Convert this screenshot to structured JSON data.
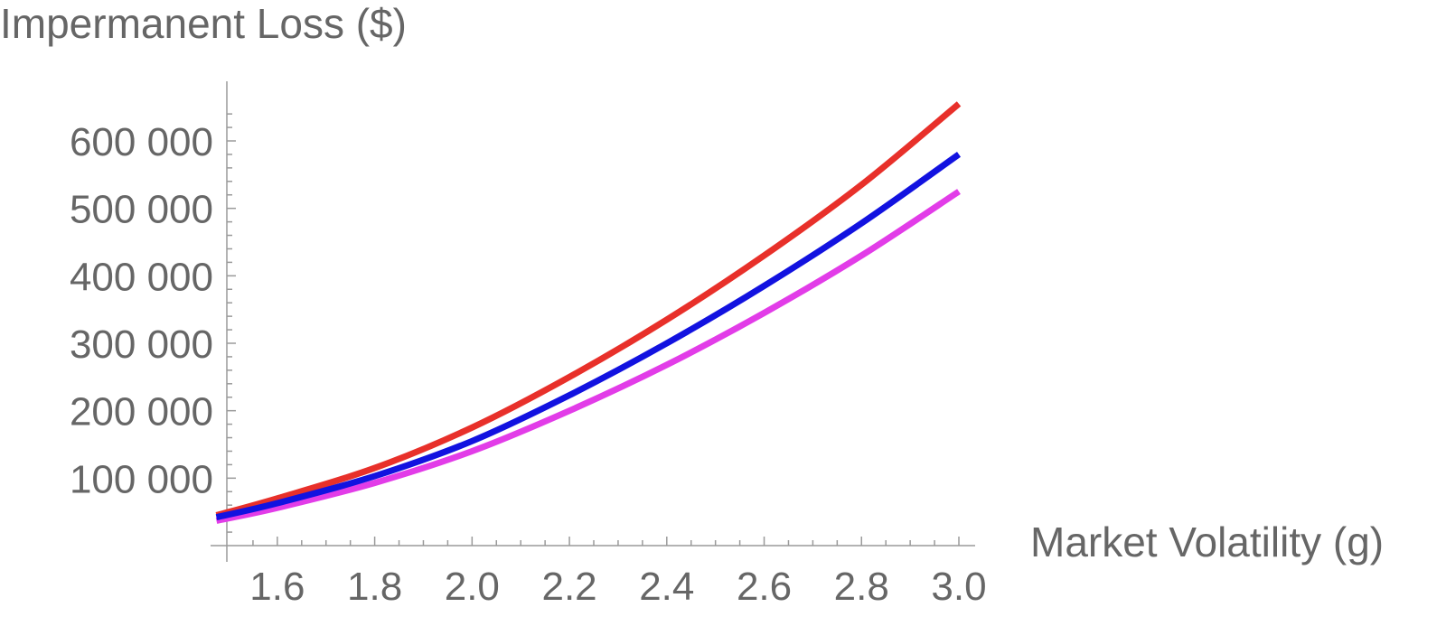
{
  "chart_data": {
    "type": "line",
    "title": "",
    "ylabel": "Impermanent Loss ($)",
    "xlabel": "Market Volatility (g)",
    "xlim": [
      1.5,
      3.0
    ],
    "ylim": [
      0,
      650000
    ],
    "x_ticks": [
      "1.6",
      "1.8",
      "2.0",
      "2.2",
      "2.4",
      "2.6",
      "2.8",
      "3.0"
    ],
    "y_ticks": [
      "100 000",
      "200 000",
      "300 000",
      "400 000",
      "500 000",
      "600 000"
    ],
    "grid": false,
    "series": [
      {
        "color": "#e8302a",
        "x": [
          1.475,
          1.6,
          1.8,
          2.0,
          2.2,
          2.4,
          2.6,
          2.8,
          3.0
        ],
        "y": [
          45000,
          70000,
          115000,
          175000,
          250000,
          335000,
          430000,
          535000,
          655000
        ]
      },
      {
        "color": "#1212e0",
        "x": [
          1.475,
          1.6,
          1.8,
          2.0,
          2.2,
          2.4,
          2.6,
          2.8,
          3.0
        ],
        "y": [
          42000,
          63000,
          103000,
          155000,
          223000,
          300000,
          385000,
          478000,
          580000
        ]
      },
      {
        "color": "#e23ce8",
        "x": [
          1.475,
          1.6,
          1.8,
          2.0,
          2.2,
          2.4,
          2.6,
          2.8,
          3.0
        ],
        "y": [
          37000,
          56000,
          93000,
          140000,
          200000,
          268000,
          345000,
          430000,
          525000
        ]
      }
    ]
  }
}
